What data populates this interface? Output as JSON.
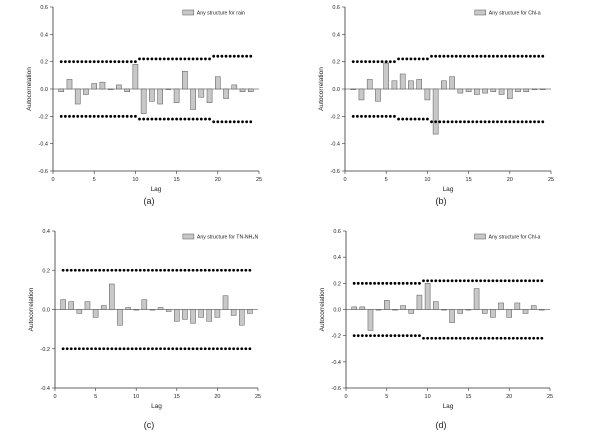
{
  "chart_data": [
    {
      "type": "bar",
      "panel": "(a)",
      "legend": "Any structure for rain",
      "xlabel": "Lag",
      "ylabel": "Autocorrelation",
      "xlim": [
        0,
        25
      ],
      "ylim": [
        -0.6,
        0.6
      ],
      "xticks": [
        0,
        5,
        10,
        15,
        20,
        25
      ],
      "yticks": [
        -0.6,
        -0.4,
        -0.2,
        0.0,
        0.2,
        0.4,
        0.6
      ],
      "lags": [
        1,
        2,
        3,
        4,
        5,
        6,
        7,
        8,
        9,
        10,
        11,
        12,
        13,
        14,
        15,
        16,
        17,
        18,
        19,
        20,
        21,
        22,
        23,
        24
      ],
      "values": [
        -0.02,
        0.07,
        -0.11,
        -0.04,
        0.04,
        0.05,
        0.0,
        0.03,
        -0.02,
        0.18,
        -0.18,
        -0.09,
        -0.11,
        0.0,
        -0.1,
        0.13,
        -0.15,
        -0.06,
        -0.1,
        0.09,
        -0.07,
        0.03,
        -0.02,
        -0.02
      ],
      "confidence_upper": [
        0.2,
        0.2,
        0.2,
        0.2,
        0.2,
        0.2,
        0.2,
        0.2,
        0.2,
        0.2,
        0.22,
        0.22,
        0.22,
        0.22,
        0.22,
        0.22,
        0.22,
        0.22,
        0.22,
        0.24,
        0.24,
        0.24,
        0.24,
        0.24
      ],
      "confidence_lower": [
        -0.2,
        -0.2,
        -0.2,
        -0.2,
        -0.2,
        -0.2,
        -0.2,
        -0.2,
        -0.2,
        -0.2,
        -0.22,
        -0.22,
        -0.22,
        -0.22,
        -0.22,
        -0.22,
        -0.22,
        -0.22,
        -0.22,
        -0.24,
        -0.24,
        -0.24,
        -0.24,
        -0.24
      ]
    },
    {
      "type": "bar",
      "panel": "(b)",
      "legend": "Any structure for Chl-a",
      "xlabel": "Lag",
      "ylabel": "Autocorrelation",
      "xlim": [
        0,
        25
      ],
      "ylim": [
        -0.6,
        0.6
      ],
      "xticks": [
        0,
        5,
        10,
        15,
        20,
        25
      ],
      "yticks": [
        -0.6,
        -0.4,
        -0.2,
        0.0,
        0.2,
        0.4,
        0.6
      ],
      "lags": [
        1,
        2,
        3,
        4,
        5,
        6,
        7,
        8,
        9,
        10,
        11,
        12,
        13,
        14,
        15,
        16,
        17,
        18,
        19,
        20,
        21,
        22,
        23,
        24
      ],
      "values": [
        0.0,
        -0.08,
        0.07,
        -0.09,
        0.19,
        0.06,
        0.11,
        0.06,
        0.07,
        -0.08,
        -0.33,
        0.06,
        0.09,
        -0.03,
        -0.02,
        -0.04,
        -0.03,
        -0.02,
        -0.04,
        -0.07,
        -0.02,
        -0.02,
        0.0,
        0.0
      ],
      "confidence_upper": [
        0.2,
        0.2,
        0.2,
        0.2,
        0.2,
        0.2,
        0.22,
        0.22,
        0.22,
        0.22,
        0.24,
        0.24,
        0.24,
        0.24,
        0.24,
        0.24,
        0.24,
        0.24,
        0.24,
        0.24,
        0.24,
        0.24,
        0.24,
        0.24
      ],
      "confidence_lower": [
        -0.2,
        -0.2,
        -0.2,
        -0.2,
        -0.2,
        -0.2,
        -0.22,
        -0.22,
        -0.22,
        -0.22,
        -0.24,
        -0.24,
        -0.24,
        -0.24,
        -0.24,
        -0.24,
        -0.24,
        -0.24,
        -0.24,
        -0.24,
        -0.24,
        -0.24,
        -0.24,
        -0.24
      ]
    },
    {
      "type": "bar",
      "panel": "(c)",
      "legend": "Any structure for TN-NH₄N",
      "xlabel": "Lag",
      "ylabel": "Autocorrelation",
      "xlim": [
        0,
        25
      ],
      "ylim": [
        -0.4,
        0.4
      ],
      "xticks": [
        0,
        5,
        10,
        15,
        20,
        25
      ],
      "yticks": [
        -0.4,
        -0.2,
        0.0,
        0.2,
        0.4
      ],
      "lags": [
        1,
        2,
        3,
        4,
        5,
        6,
        7,
        8,
        9,
        10,
        11,
        12,
        13,
        14,
        15,
        16,
        17,
        18,
        19,
        20,
        21,
        22,
        23,
        24
      ],
      "values": [
        0.05,
        0.04,
        -0.02,
        0.04,
        -0.04,
        0.02,
        0.13,
        -0.08,
        0.01,
        0.0,
        0.05,
        0.0,
        0.01,
        -0.01,
        -0.06,
        -0.05,
        -0.07,
        -0.04,
        -0.06,
        -0.04,
        0.07,
        -0.03,
        -0.08,
        -0.02
      ],
      "confidence_upper": [
        0.2,
        0.2,
        0.2,
        0.2,
        0.2,
        0.2,
        0.2,
        0.2,
        0.2,
        0.2,
        0.2,
        0.2,
        0.2,
        0.2,
        0.2,
        0.2,
        0.2,
        0.2,
        0.2,
        0.2,
        0.2,
        0.2,
        0.2,
        0.2
      ],
      "confidence_lower": [
        -0.2,
        -0.2,
        -0.2,
        -0.2,
        -0.2,
        -0.2,
        -0.2,
        -0.2,
        -0.2,
        -0.2,
        -0.2,
        -0.2,
        -0.2,
        -0.2,
        -0.2,
        -0.2,
        -0.2,
        -0.2,
        -0.2,
        -0.2,
        -0.2,
        -0.2,
        -0.2,
        -0.2
      ]
    },
    {
      "type": "bar",
      "panel": "(d)",
      "legend": "Any structure for Chl-a",
      "xlabel": "Lag",
      "ylabel": "Autocorrelation",
      "xlim": [
        0,
        25
      ],
      "ylim": [
        -0.6,
        0.6
      ],
      "xticks": [
        0,
        5,
        10,
        15,
        20,
        25
      ],
      "yticks": [
        -0.6,
        -0.4,
        -0.2,
        0.0,
        0.2,
        0.4,
        0.6
      ],
      "lags": [
        1,
        2,
        3,
        4,
        5,
        6,
        7,
        8,
        9,
        10,
        11,
        12,
        13,
        14,
        15,
        16,
        17,
        18,
        19,
        20,
        21,
        22,
        23,
        24
      ],
      "values": [
        0.02,
        0.02,
        -0.16,
        0.0,
        0.07,
        0.0,
        0.03,
        -0.03,
        0.11,
        0.2,
        0.06,
        0.0,
        -0.1,
        -0.03,
        0.0,
        0.16,
        -0.03,
        -0.06,
        0.05,
        -0.06,
        0.05,
        -0.03,
        0.03,
        0.0
      ],
      "confidence_upper": [
        0.2,
        0.2,
        0.2,
        0.2,
        0.2,
        0.2,
        0.2,
        0.2,
        0.2,
        0.22,
        0.22,
        0.22,
        0.22,
        0.22,
        0.22,
        0.22,
        0.22,
        0.22,
        0.22,
        0.22,
        0.22,
        0.22,
        0.22,
        0.22
      ],
      "confidence_lower": [
        -0.2,
        -0.2,
        -0.2,
        -0.2,
        -0.2,
        -0.2,
        -0.2,
        -0.2,
        -0.2,
        -0.22,
        -0.22,
        -0.22,
        -0.22,
        -0.22,
        -0.22,
        -0.22,
        -0.22,
        -0.22,
        -0.22,
        -0.22,
        -0.22,
        -0.22,
        -0.22,
        -0.22
      ]
    }
  ],
  "colors": {
    "bar_fill": "#c8c8c8",
    "bar_stroke": "#555555",
    "axis": "#333333",
    "confidence_dots": "#000000"
  }
}
